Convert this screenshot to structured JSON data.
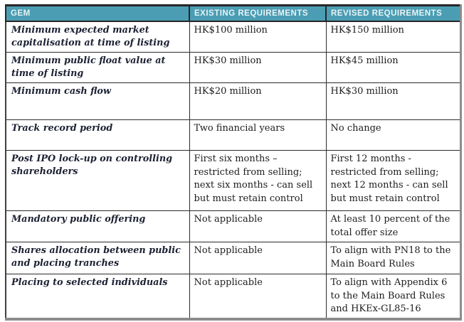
{
  "colors": {
    "header_bg": "#4a9db3",
    "header_text": "#e9f3f5",
    "grid": "#2b2b2b",
    "outer_gray": "#8c8c8c",
    "label_text": "#1c2133",
    "body_text": "#1c1c1c"
  },
  "table": {
    "columns": [
      {
        "label": "GEM"
      },
      {
        "label": "EXISTING REQUIREMENTS"
      },
      {
        "label": "REVISED REQUIREMENTS"
      }
    ],
    "rows": [
      {
        "gem": "Minimum expected market capitalisation at time of listing",
        "existing": "HK$100 million",
        "revised": "HK$150 million"
      },
      {
        "gem": "Minimum public float value at time of listing",
        "existing": "HK$30 million",
        "revised": "HK$45 million"
      },
      {
        "gem": "Minimum cash flow",
        "existing": "HK$20 million",
        "revised": "HK$30 million"
      },
      {
        "gem": "Track record period",
        "existing": "Two financial years",
        "revised": "No change"
      },
      {
        "gem": "Post IPO lock-up on controlling shareholders",
        "existing": "First six months – restricted from selling; next six months - can sell but must retain control",
        "revised": "First 12 months - restricted from selling; next 12 months - can sell but must retain control"
      },
      {
        "gem": "Mandatory public offering",
        "existing": "Not applicable",
        "revised": "At least 10 percent of the total offer size"
      },
      {
        "gem": "Shares allocation between public and placing tranches",
        "existing": "Not applicable",
        "revised": "To align with PN18 to the Main Board Rules"
      },
      {
        "gem": "Placing to selected individuals",
        "existing": "Not applicable",
        "revised": "To align with Appendix 6 to the Main Board Rules and HKEx-GL85-16"
      }
    ]
  }
}
